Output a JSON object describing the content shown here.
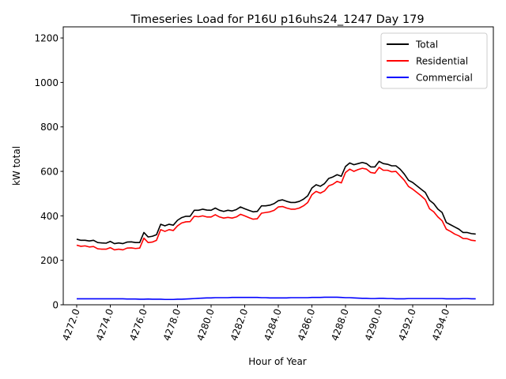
{
  "chart_data": {
    "type": "line",
    "title": "Timeseries Load for P16U p16uhs24_1247  Day 179",
    "xlabel": "Hour of Year",
    "ylabel": "kW total",
    "xlim": [
      4271.2,
      4296.8
    ],
    "ylim": [
      0,
      1250
    ],
    "x_ticks": [
      4272,
      4274,
      4276,
      4278,
      4280,
      4282,
      4284,
      4286,
      4288,
      4290,
      4292,
      4294
    ],
    "x_tick_labels": [
      "4272.0",
      "4274.0",
      "4276.0",
      "4278.0",
      "4280.0",
      "4282.0",
      "4284.0",
      "4286.0",
      "4288.0",
      "4290.0",
      "4292.0",
      "4294.0"
    ],
    "y_ticks": [
      0,
      200,
      400,
      600,
      800,
      1000,
      1200
    ],
    "y_tick_labels": [
      "0",
      "200",
      "400",
      "600",
      "800",
      "1000",
      "1200"
    ],
    "legend_position": "top-right",
    "x_start": 4272,
    "x_step": 0.25,
    "series": [
      {
        "name": "Total",
        "color": "#000000",
        "values": [
          295,
          290,
          290,
          287,
          290,
          280,
          278,
          277,
          285,
          275,
          278,
          275,
          282,
          283,
          280,
          280,
          325,
          305,
          308,
          315,
          362,
          355,
          362,
          358,
          380,
          392,
          398,
          398,
          425,
          425,
          430,
          426,
          425,
          435,
          425,
          420,
          425,
          422,
          428,
          440,
          432,
          425,
          418,
          420,
          445,
          445,
          448,
          455,
          468,
          472,
          465,
          460,
          460,
          465,
          475,
          490,
          525,
          540,
          533,
          545,
          568,
          575,
          585,
          578,
          622,
          638,
          630,
          635,
          640,
          635,
          620,
          620,
          645,
          635,
          632,
          625,
          625,
          610,
          588,
          560,
          550,
          535,
          520,
          505,
          470,
          455,
          430,
          415,
          370,
          360,
          350,
          340,
          325,
          325,
          320,
          318
        ]
      },
      {
        "name": "Residential",
        "color": "#ff0000",
        "values": [
          268,
          263,
          265,
          260,
          262,
          252,
          250,
          250,
          257,
          247,
          250,
          247,
          255,
          256,
          253,
          255,
          300,
          280,
          282,
          290,
          338,
          330,
          338,
          334,
          355,
          368,
          373,
          374,
          398,
          396,
          400,
          395,
          395,
          405,
          395,
          390,
          393,
          390,
          395,
          407,
          400,
          392,
          385,
          387,
          412,
          415,
          418,
          425,
          440,
          442,
          435,
          430,
          430,
          435,
          445,
          460,
          495,
          510,
          502,
          512,
          535,
          542,
          555,
          548,
          595,
          610,
          600,
          608,
          614,
          610,
          595,
          592,
          618,
          605,
          605,
          598,
          600,
          580,
          560,
          532,
          520,
          505,
          490,
          473,
          432,
          418,
          395,
          378,
          340,
          330,
          318,
          310,
          298,
          297,
          290,
          288
        ]
      },
      {
        "name": "Commercial",
        "color": "#0000ff",
        "values": [
          27,
          27,
          27,
          27,
          27,
          27,
          27,
          27,
          27,
          27,
          27,
          27,
          26,
          26,
          26,
          25,
          25,
          26,
          25,
          25,
          25,
          24,
          24,
          24,
          25,
          25,
          26,
          27,
          28,
          29,
          30,
          31,
          31,
          32,
          32,
          32,
          32,
          33,
          33,
          33,
          33,
          33,
          33,
          33,
          32,
          32,
          31,
          31,
          31,
          31,
          31,
          32,
          32,
          32,
          32,
          32,
          33,
          33,
          33,
          34,
          34,
          34,
          34,
          33,
          32,
          32,
          31,
          30,
          29,
          29,
          28,
          28,
          29,
          29,
          28,
          28,
          27,
          27,
          27,
          28,
          28,
          28,
          28,
          28,
          28,
          28,
          28,
          28,
          27,
          27,
          27,
          27,
          28,
          28,
          27,
          27
        ]
      }
    ]
  }
}
